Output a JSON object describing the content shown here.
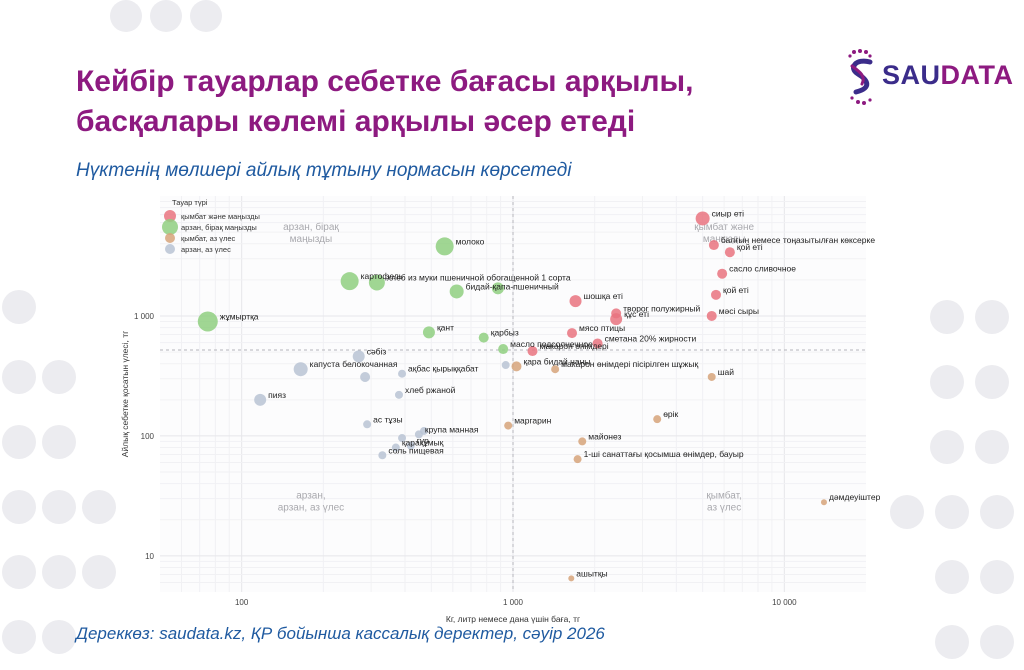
{
  "title_line1": "Кейбір тауарлар себетке бағасы арқылы,",
  "title_line2": "басқалары көлемі арқылы әсер етеді",
  "subtitle": "Нүктенің мөлшері айлық тұтыну нормасын көрсетеді",
  "source": "Дереккөз: saudata.kz, ҚР бойынша кассалық деректер, сәуір 2026",
  "logo": {
    "part1": "SAU",
    "part2": "DATA"
  },
  "colors": {
    "title": "#8d1a80",
    "subtitle": "#1f5aa0",
    "expensive_important": "#e9737f",
    "cheap_important": "#8fcf80",
    "expensive_small": "#d6a37a",
    "cheap_small": "#b8c3d3"
  },
  "chart_data": {
    "type": "scatter",
    "xlabel": "Кг, литр немесе дана үшін баға, тг",
    "ylabel": "Айлық себетке қосатын үлесі, тг",
    "x_scale": "log",
    "y_scale": "log",
    "xlim": [
      50,
      20000
    ],
    "ylim": [
      5,
      10000
    ],
    "x_ticks": [
      {
        "v": 100,
        "label": "100"
      },
      {
        "v": 1000,
        "label": "1 000"
      },
      {
        "v": 10000,
        "label": "10 000"
      }
    ],
    "y_ticks": [
      {
        "v": 10,
        "label": "10"
      },
      {
        "v": 100,
        "label": "100"
      },
      {
        "v": 1000,
        "label": "1 000"
      }
    ],
    "grid": true,
    "ref_lines": {
      "x": 1000,
      "y": 520
    },
    "legend": {
      "position": "top-left",
      "title": "Тауар түрі",
      "items": [
        {
          "key": "expensive_important",
          "label": "қымбат және маңызды"
        },
        {
          "key": "cheap_important",
          "label": "арзан, бірақ маңызды"
        },
        {
          "key": "expensive_small",
          "label": "қымбат, аз үлес"
        },
        {
          "key": "cheap_small",
          "label": "арзан, аз үлес"
        }
      ]
    },
    "quadrant_labels": [
      {
        "text": "арзан, бірақ\nмаңызды",
        "x": 180,
        "y": 5200
      },
      {
        "text": "қымбат және\nманызды",
        "x": 6000,
        "y": 5200
      },
      {
        "text": "арзан,\nарзан, аз үлес",
        "x": 180,
        "y": 30
      },
      {
        "text": "қымбат,\nаз үлес",
        "x": 6000,
        "y": 30
      }
    ],
    "points": [
      {
        "label": "сиыр еті",
        "x": 5000,
        "y": 6500,
        "size": 7,
        "cat": "expensive_important"
      },
      {
        "label": "балғын немесе тоңазытылған көксерке",
        "x": 5500,
        "y": 3900,
        "size": 5,
        "cat": "expensive_important"
      },
      {
        "label": "қой еті",
        "x": 6300,
        "y": 3400,
        "size": 5,
        "cat": "expensive_important"
      },
      {
        "label": "сасло сливочное",
        "x": 5900,
        "y": 2250,
        "size": 5,
        "cat": "expensive_important"
      },
      {
        "label": "қой еті",
        "x": 5600,
        "y": 1500,
        "size": 5,
        "cat": "expensive_important"
      },
      {
        "label": "мәсі сыры",
        "x": 5400,
        "y": 1000,
        "size": 5,
        "cat": "expensive_important"
      },
      {
        "label": "шошқа еті",
        "x": 1700,
        "y": 1330,
        "size": 6,
        "cat": "expensive_important"
      },
      {
        "label": "творог полужирный",
        "x": 2400,
        "y": 1050,
        "size": 5,
        "cat": "expensive_important"
      },
      {
        "label": "құс еті",
        "x": 2400,
        "y": 940,
        "size": 6,
        "cat": "expensive_important"
      },
      {
        "label": "мясо птицы",
        "x": 1650,
        "y": 720,
        "size": 5,
        "cat": "expensive_important"
      },
      {
        "label": "сметана 20% жирности",
        "x": 2050,
        "y": 590,
        "size": 5,
        "cat": "expensive_important"
      },
      {
        "label": "макарон өнімдері",
        "x": 1180,
        "y": 510,
        "size": 5,
        "cat": "expensive_important"
      },
      {
        "label": "молоко",
        "x": 560,
        "y": 3800,
        "size": 9,
        "cat": "cheap_important"
      },
      {
        "label": "картофель",
        "x": 250,
        "y": 1950,
        "size": 9,
        "cat": "cheap_important"
      },
      {
        "label": "хлеб из муки пшеничной обогащенной 1 сорта",
        "x": 315,
        "y": 1900,
        "size": 8,
        "cat": "cheap_important"
      },
      {
        "label": "бидай-қапа-пшеничный",
        "x": 620,
        "y": 1600,
        "size": 7,
        "cat": "cheap_important"
      },
      {
        "label": "жұмыртқа",
        "x": 75,
        "y": 900,
        "size": 10,
        "cat": "cheap_important"
      },
      {
        "label": "қант",
        "x": 490,
        "y": 730,
        "size": 6,
        "cat": "cheap_important"
      },
      {
        "label": "қарбыз",
        "x": 780,
        "y": 660,
        "size": 5,
        "cat": "cheap_important"
      },
      {
        "label": "масло подсолнечное",
        "x": 920,
        "y": 530,
        "size": 5,
        "cat": "cheap_important"
      },
      {
        "label": "",
        "x": 880,
        "y": 1700,
        "size": 6,
        "cat": "cheap_important"
      },
      {
        "label": "сәбіз",
        "x": 270,
        "y": 460,
        "size": 6,
        "cat": "cheap_small"
      },
      {
        "label": "капуста белокочанная",
        "x": 165,
        "y": 360,
        "size": 7,
        "cat": "cheap_small"
      },
      {
        "label": "",
        "x": 285,
        "y": 310,
        "size": 5,
        "cat": "cheap_small"
      },
      {
        "label": "",
        "x": 940,
        "y": 390,
        "size": 4,
        "cat": "cheap_small"
      },
      {
        "label": "ақбас қырыққабат",
        "x": 390,
        "y": 330,
        "size": 4,
        "cat": "cheap_small"
      },
      {
        "label": "хлеб ржаной",
        "x": 380,
        "y": 220,
        "size": 4,
        "cat": "cheap_small"
      },
      {
        "label": "пияз",
        "x": 117,
        "y": 200,
        "size": 6,
        "cat": "cheap_small"
      },
      {
        "label": "ас тұзы",
        "x": 290,
        "y": 125,
        "size": 4,
        "cat": "cheap_small"
      },
      {
        "label": "крупа манная",
        "x": 450,
        "y": 103,
        "size": 4,
        "cat": "cheap_small"
      },
      {
        "label": "",
        "x": 390,
        "y": 96,
        "size": 4,
        "cat": "cheap_small"
      },
      {
        "label": "гүр",
        "x": 420,
        "y": 83,
        "size": 4,
        "cat": "cheap_small"
      },
      {
        "label": "қарақұмық",
        "x": 370,
        "y": 80,
        "size": 4,
        "cat": "cheap_small"
      },
      {
        "label": "соль пищевая",
        "x": 330,
        "y": 69,
        "size": 4,
        "cat": "cheap_small"
      },
      {
        "label": "",
        "x": 470,
        "y": 110,
        "size": 4,
        "cat": "cheap_small"
      },
      {
        "label": "қара бидай наны",
        "x": 1030,
        "y": 380,
        "size": 5,
        "cat": "expensive_small"
      },
      {
        "label": "макарон өнімдері пісірілген шұжық",
        "x": 1430,
        "y": 360,
        "size": 4,
        "cat": "expensive_small"
      },
      {
        "label": "шай",
        "x": 5400,
        "y": 310,
        "size": 4,
        "cat": "expensive_small"
      },
      {
        "label": "маргарин",
        "x": 960,
        "y": 122,
        "size": 4,
        "cat": "expensive_small"
      },
      {
        "label": "өрік",
        "x": 3400,
        "y": 138,
        "size": 4,
        "cat": "expensive_small"
      },
      {
        "label": "майонез",
        "x": 1800,
        "y": 90,
        "size": 4,
        "cat": "expensive_small"
      },
      {
        "label": "1-ші санаттағы қосымша өнімдер, бауыр",
        "x": 1730,
        "y": 64,
        "size": 4,
        "cat": "expensive_small"
      },
      {
        "label": "дәмдеуіштер",
        "x": 14000,
        "y": 28,
        "size": 3,
        "cat": "expensive_small"
      },
      {
        "label": "ашытқы",
        "x": 1640,
        "y": 6.5,
        "size": 3,
        "cat": "expensive_small"
      }
    ]
  }
}
